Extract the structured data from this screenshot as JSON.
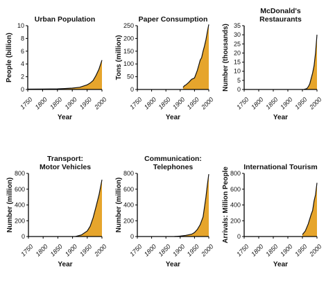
{
  "fill_color": "#E6A52C",
  "line_color": "#111111",
  "chart_data": [
    {
      "type": "area",
      "title": [
        "Urban Population"
      ],
      "xlabel": "Year",
      "ylabel": "People (billion)",
      "xlim": [
        1750,
        2000
      ],
      "ylim": [
        0,
        10
      ],
      "xticks": [
        "1750",
        "1800",
        "1850",
        "1900",
        "1950",
        "2000"
      ],
      "yticks": [
        "0",
        "2",
        "4",
        "6",
        "8",
        "10"
      ],
      "x": [
        1750,
        1800,
        1850,
        1875,
        1900,
        1925,
        1950,
        1960,
        1970,
        1980,
        1990,
        2000
      ],
      "y": [
        0.05,
        0.07,
        0.1,
        0.15,
        0.22,
        0.35,
        0.73,
        1.0,
        1.4,
        2.2,
        3.2,
        4.6
      ]
    },
    {
      "type": "area",
      "title": [
        "Paper Consumption"
      ],
      "xlabel": "Year",
      "ylabel": "Tons (million)",
      "xlim": [
        1750,
        2000
      ],
      "ylim": [
        0,
        250
      ],
      "xticks": [
        "1750",
        "1800",
        "1850",
        "1900",
        "1950",
        "2000"
      ],
      "yticks": [
        "0",
        "50",
        "100",
        "150",
        "200",
        "250"
      ],
      "x": [
        1910,
        1915,
        1920,
        1930,
        1940,
        1950,
        1955,
        1960,
        1965,
        1970,
        1975,
        1980,
        1985,
        1990,
        1995,
        2000
      ],
      "y": [
        8,
        15,
        18,
        28,
        40,
        45,
        60,
        75,
        95,
        115,
        125,
        150,
        170,
        195,
        225,
        255
      ]
    },
    {
      "type": "area",
      "title": [
        "McDonald's",
        "Restaurants"
      ],
      "xlabel": "Year",
      "ylabel": "Number (thousands)",
      "xlim": [
        1750,
        2000
      ],
      "ylim": [
        0,
        35
      ],
      "xticks": [
        "1750",
        "1800",
        "1850",
        "1900",
        "1950",
        "2000"
      ],
      "yticks": [
        "0",
        "5",
        "10",
        "15",
        "20",
        "25",
        "30",
        "35"
      ],
      "x": [
        1955,
        1965,
        1970,
        1975,
        1980,
        1985,
        1990,
        1995,
        2000
      ],
      "y": [
        0,
        0.5,
        1.5,
        3,
        6,
        9,
        13,
        20,
        30
      ]
    },
    {
      "type": "area",
      "title": [
        "Transport:",
        "Motor Vehicles"
      ],
      "xlabel": "Year",
      "ylabel": "Number (million)",
      "xlim": [
        1750,
        2000
      ],
      "ylim": [
        0,
        800
      ],
      "xticks": [
        "1750",
        "1800",
        "1850",
        "1900",
        "1950",
        "2000"
      ],
      "yticks": [
        "0",
        "200",
        "400",
        "600",
        "800"
      ],
      "x": [
        1910,
        1930,
        1950,
        1960,
        1970,
        1980,
        1990,
        2000
      ],
      "y": [
        1,
        20,
        70,
        130,
        240,
        380,
        530,
        720
      ]
    },
    {
      "type": "area",
      "title": [
        "Communication:",
        "Telephones"
      ],
      "xlabel": "Year",
      "ylabel": "Number (million)",
      "xlim": [
        1750,
        2000
      ],
      "ylim": [
        0,
        800
      ],
      "xticks": [
        "1750",
        "1800",
        "1850",
        "1900",
        "1950",
        "2000"
      ],
      "yticks": [
        "0",
        "200",
        "400",
        "600",
        "800"
      ],
      "x": [
        1880,
        1900,
        1920,
        1940,
        1950,
        1960,
        1970,
        1980,
        1990,
        1995,
        2000
      ],
      "y": [
        0,
        5,
        15,
        30,
        50,
        90,
        150,
        250,
        500,
        650,
        790
      ]
    },
    {
      "type": "area",
      "title": [
        "International Tourism"
      ],
      "xlabel": "Year",
      "ylabel": "Arrivals: Million People",
      "xlim": [
        1750,
        2000
      ],
      "ylim": [
        0,
        800
      ],
      "xticks": [
        "1750",
        "1800",
        "1850",
        "1900",
        "1950",
        "2000"
      ],
      "yticks": [
        "0",
        "200",
        "400",
        "600",
        "800"
      ],
      "x": [
        1950,
        1960,
        1970,
        1980,
        1985,
        1990,
        1995,
        2000
      ],
      "y": [
        25,
        70,
        160,
        280,
        330,
        450,
        530,
        680
      ]
    }
  ]
}
